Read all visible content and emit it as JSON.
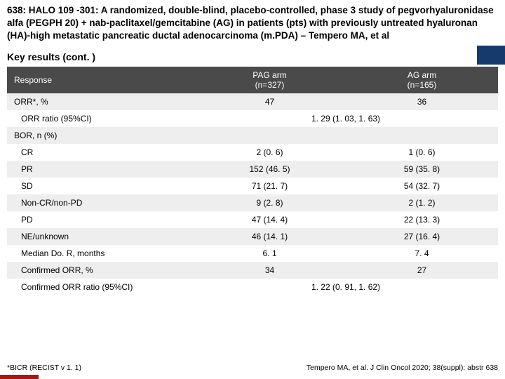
{
  "title": "638: HALO 109 -301: A randomized, double-blind, placebo-controlled, phase 3 study of pegvorhyaluronidase alfa (PEGPH 20) + nab-paclitaxel/gemcitabine (AG) in patients (pts) with previously untreated hyaluronan (HA)-high metastatic pancreatic ductal adenocarcinoma (m.PDA) – Tempero MA, et al",
  "subtitle": "Key results (cont. )",
  "table": {
    "header": {
      "c0": "Response",
      "c1_line1": "PAG arm",
      "c1_line2": "(n=327)",
      "c2_line1": "AG arm",
      "c2_line2": "(n=165)"
    },
    "rows": [
      {
        "cls": "odd",
        "label": "ORR*, %",
        "indent": 0,
        "c1": "47",
        "c2": "36",
        "span": false
      },
      {
        "cls": "even",
        "label": "ORR ratio (95%CI)",
        "indent": 1,
        "c1": "1. 29 (1. 03, 1. 63)",
        "c2": "",
        "span": true
      },
      {
        "cls": "odd",
        "label": "BOR, n (%)",
        "indent": 0,
        "c1": "",
        "c2": "",
        "span": false
      },
      {
        "cls": "even",
        "label": "CR",
        "indent": 1,
        "c1": "2 (0. 6)",
        "c2": "1 (0. 6)",
        "span": false
      },
      {
        "cls": "odd",
        "label": "PR",
        "indent": 1,
        "c1": "152 (46. 5)",
        "c2": "59 (35. 8)",
        "span": false
      },
      {
        "cls": "even",
        "label": "SD",
        "indent": 1,
        "c1": "71 (21. 7)",
        "c2": "54 (32. 7)",
        "span": false
      },
      {
        "cls": "odd",
        "label": "Non-CR/non-PD",
        "indent": 1,
        "c1": "9 (2. 8)",
        "c2": "2 (1. 2)",
        "span": false
      },
      {
        "cls": "even",
        "label": "PD",
        "indent": 1,
        "c1": "47 (14. 4)",
        "c2": "22 (13. 3)",
        "span": false
      },
      {
        "cls": "odd",
        "label": "NE/unknown",
        "indent": 1,
        "c1": "46 (14. 1)",
        "c2": "27 (16. 4)",
        "span": false
      },
      {
        "cls": "even",
        "label": "Median Do. R, months",
        "indent": 1,
        "c1": "6. 1",
        "c2": "7. 4",
        "span": false
      },
      {
        "cls": "odd",
        "label": "Confirmed ORR, %",
        "indent": 1,
        "c1": "34",
        "c2": "27",
        "span": false
      },
      {
        "cls": "even",
        "label": "Confirmed ORR ratio (95%CI)",
        "indent": 1,
        "c1": "1. 22 (0. 91, 1. 62)",
        "c2": "",
        "span": true
      }
    ]
  },
  "footnote_left": "*BICR (RECIST v 1. 1)",
  "footnote_right": "Tempero MA, et al. J Clin Oncol 2020; 38(suppl): abstr 638",
  "colors": {
    "header_bg": "#4a4a4a",
    "blue_bar": "#153a6b",
    "red_block": "#a81515",
    "row_odd": "#eeeeee",
    "row_even": "#ffffff"
  }
}
